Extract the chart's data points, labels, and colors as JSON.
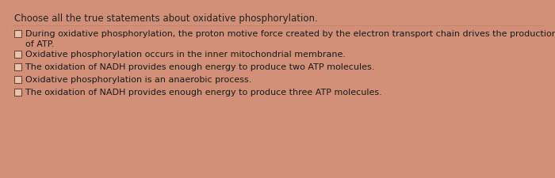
{
  "background_color": "#d4917a",
  "title": "Choose all the true statements about oxidative phosphorylation.",
  "title_fontsize": 8.5,
  "title_color": "#222222",
  "options": [
    "During oxidative phosphorylation, the proton motive force created by the electron transport chain drives the production\nof ATP.",
    "Oxidative phosphorylation occurs in the inner mitochondrial membrane.",
    "The oxidation of NADH provides enough energy to produce two ATP molecules.",
    "Oxidative phosphorylation is an anaerobic process.",
    "The oxidation of NADH provides enough energy to produce three ATP molecules."
  ],
  "option_fontsize": 8.0,
  "option_color": "#1a1a1a",
  "checkbox_facecolor": "#e8c4b0",
  "checkbox_edgecolor": "#7a4030",
  "checkbox_linewidth": 0.8
}
